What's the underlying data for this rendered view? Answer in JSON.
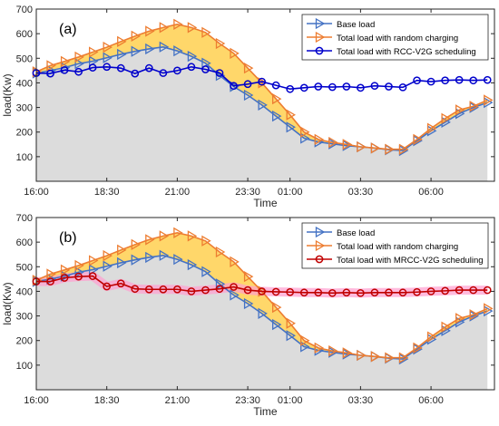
{
  "chart_data": [
    {
      "type": "line",
      "panel_label": "(a)",
      "xlabel": "Time",
      "ylabel": "load(Kw)",
      "ylim": [
        0,
        700
      ],
      "yticks": [
        100,
        200,
        300,
        400,
        500,
        600,
        700
      ],
      "xticks": [
        "16:00",
        "18:30",
        "21:00",
        "23:30",
        "01:00",
        "03:30",
        "06:00"
      ],
      "legend_position": "top-right",
      "x": [
        "16:00",
        "16:30",
        "17:00",
        "17:30",
        "18:00",
        "18:30",
        "19:00",
        "19:30",
        "20:00",
        "20:30",
        "21:00",
        "21:30",
        "22:00",
        "22:30",
        "23:00",
        "23:30",
        "00:00",
        "00:30",
        "01:00",
        "01:30",
        "02:00",
        "02:30",
        "03:00",
        "03:30",
        "04:00",
        "04:30",
        "05:00",
        "05:30",
        "06:00",
        "06:30",
        "07:00",
        "07:30",
        "08:00"
      ],
      "series": [
        {
          "name": "Base load",
          "color": "#4472c4",
          "marker": "triangle-right",
          "values": [
            440,
            450,
            462,
            478,
            488,
            502,
            516,
            528,
            538,
            546,
            530,
            508,
            480,
            430,
            385,
            350,
            310,
            265,
            220,
            175,
            160,
            152,
            145,
            140,
            135,
            128,
            125,
            165,
            205,
            240,
            275,
            300,
            320
          ]
        },
        {
          "name": "Total load with random charging",
          "color": "#ed7d31",
          "marker": "triangle-right",
          "values": [
            445,
            470,
            487,
            505,
            525,
            545,
            568,
            590,
            610,
            625,
            638,
            625,
            605,
            560,
            520,
            460,
            400,
            335,
            270,
            200,
            170,
            158,
            150,
            140,
            135,
            130,
            130,
            170,
            215,
            255,
            290,
            305,
            330
          ]
        },
        {
          "name": "Total load with RCC-V2G scheduling",
          "color": "#0000cc",
          "marker": "circle",
          "values": [
            440,
            438,
            452,
            445,
            462,
            465,
            460,
            438,
            460,
            440,
            450,
            465,
            455,
            440,
            388,
            395,
            405,
            390,
            375,
            380,
            385,
            383,
            385,
            380,
            388,
            385,
            382,
            410,
            405,
            410,
            412,
            410,
            412
          ]
        }
      ]
    },
    {
      "type": "line",
      "panel_label": "(b)",
      "xlabel": "Time",
      "ylabel": "load(Kw)",
      "ylim": [
        0,
        700
      ],
      "yticks": [
        100,
        200,
        300,
        400,
        500,
        600,
        700
      ],
      "xticks": [
        "16:00",
        "18:30",
        "21:00",
        "23:30",
        "01:00",
        "03:30",
        "06:00"
      ],
      "legend_position": "top-right",
      "x": [
        "16:00",
        "16:30",
        "17:00",
        "17:30",
        "18:00",
        "18:30",
        "19:00",
        "19:30",
        "20:00",
        "20:30",
        "21:00",
        "21:30",
        "22:00",
        "22:30",
        "23:00",
        "23:30",
        "00:00",
        "00:30",
        "01:00",
        "01:30",
        "02:00",
        "02:30",
        "03:00",
        "03:30",
        "04:00",
        "04:30",
        "05:00",
        "05:30",
        "06:00",
        "06:30",
        "07:00",
        "07:30",
        "08:00"
      ],
      "series": [
        {
          "name": "Base load",
          "color": "#4472c4",
          "marker": "triangle-right",
          "values": [
            440,
            450,
            462,
            478,
            488,
            502,
            516,
            528,
            538,
            546,
            530,
            508,
            480,
            430,
            385,
            350,
            310,
            265,
            220,
            175,
            160,
            152,
            145,
            140,
            135,
            128,
            125,
            165,
            205,
            240,
            275,
            300,
            320
          ]
        },
        {
          "name": "Total load with random charging",
          "color": "#ed7d31",
          "marker": "triangle-right",
          "values": [
            445,
            470,
            487,
            505,
            525,
            545,
            568,
            590,
            610,
            625,
            638,
            625,
            605,
            560,
            520,
            460,
            400,
            335,
            270,
            200,
            170,
            158,
            150,
            140,
            135,
            130,
            130,
            170,
            215,
            255,
            290,
            305,
            330
          ]
        },
        {
          "name": "Total load with MRCC-V2G scheduling",
          "color": "#c00000",
          "marker": "circle",
          "values": [
            440,
            440,
            455,
            460,
            462,
            420,
            432,
            410,
            408,
            408,
            408,
            400,
            405,
            410,
            418,
            405,
            400,
            398,
            397,
            395,
            395,
            393,
            395,
            393,
            395,
            395,
            395,
            397,
            400,
            402,
            405,
            405,
            405
          ]
        }
      ]
    }
  ]
}
